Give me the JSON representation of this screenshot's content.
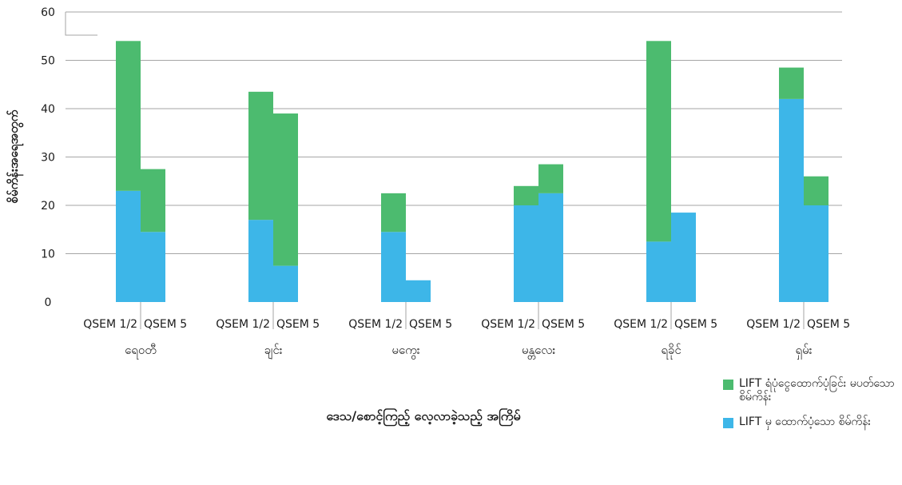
{
  "chart_data": {
    "type": "bar",
    "stacked": true,
    "title": "",
    "ylabel": "စိမ်ကိန်းအရေအတွက်",
    "xlabel": "ဒေသ/စောင့်ကြည့် လေ့လာခဲ့သည့် အကြိမ်",
    "ylim": [
      0,
      60
    ],
    "yticks": [
      0,
      10,
      20,
      30,
      40,
      50,
      60
    ],
    "grid": true,
    "legend_position": "bottom-right",
    "groups": [
      {
        "name": "ရေဝတီ",
        "bars": [
          {
            "label": "QSEM 1/2",
            "values": [
              23,
              31
            ]
          },
          {
            "label": "QSEM 5",
            "values": [
              14.5,
              13
            ]
          }
        ]
      },
      {
        "name": "ချင်း",
        "bars": [
          {
            "label": "QSEM 1/2",
            "values": [
              17,
              26.5
            ]
          },
          {
            "label": "QSEM 5",
            "values": [
              7.5,
              31.5
            ]
          }
        ]
      },
      {
        "name": "မကွေး",
        "bars": [
          {
            "label": "QSEM 1/2",
            "values": [
              14.5,
              8
            ]
          },
          {
            "label": "QSEM 5",
            "values": [
              4.5,
              0
            ]
          }
        ]
      },
      {
        "name": "မန္တလေး",
        "bars": [
          {
            "label": "QSEM 1/2",
            "values": [
              20,
              4
            ]
          },
          {
            "label": "QSEM 5",
            "values": [
              22.5,
              6
            ]
          }
        ]
      },
      {
        "name": "ရခိုင်",
        "bars": [
          {
            "label": "QSEM 1/2",
            "values": [
              12.5,
              41.5
            ]
          },
          {
            "label": "QSEM 5",
            "values": [
              18.5,
              0
            ]
          }
        ]
      },
      {
        "name": "ရှမ်း",
        "bars": [
          {
            "label": "QSEM 1/2",
            "values": [
              42,
              6.5
            ]
          },
          {
            "label": "QSEM 5",
            "values": [
              20,
              6
            ]
          }
        ]
      }
    ],
    "series": [
      {
        "name": "LIFT မှ ထောက်ပံ့သော စိမ်ကိန်း",
        "color": "#3db6e8"
      },
      {
        "name": "LIFT ရံပုံငွေထောက်ပံ့ခြင်း မပတ်သော စိမ်ကိန်း",
        "color": "#4cbb6f"
      }
    ]
  }
}
